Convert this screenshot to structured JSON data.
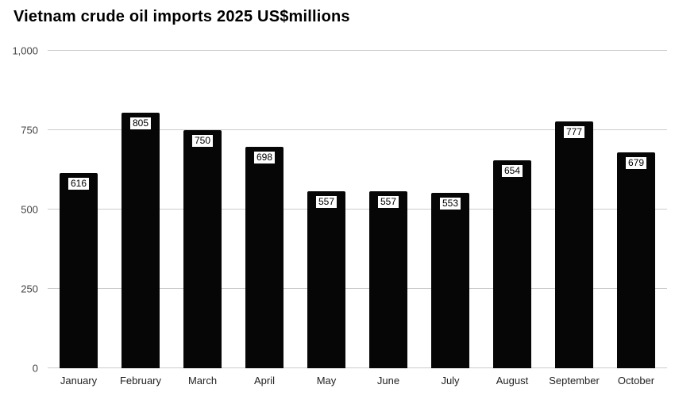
{
  "chart_data": {
    "type": "bar",
    "title": "Vietnam crude oil imports 2025 US$millions",
    "categories": [
      "January",
      "February",
      "March",
      "April",
      "May",
      "June",
      "July",
      "August",
      "September",
      "October"
    ],
    "values": [
      616,
      805,
      750,
      698,
      557,
      557,
      553,
      654,
      777,
      679
    ],
    "xlabel": "",
    "ylabel": "",
    "ylim": [
      0,
      1000
    ],
    "yticks": [
      0,
      250,
      500,
      750,
      1000
    ],
    "ytick_labels": [
      "0",
      "250",
      "500",
      "750",
      "1,000"
    ],
    "grid": true,
    "legend_position": "none",
    "bar_color": "#060606",
    "gridline_color": "#cccccc",
    "annotation_text_color": "#000000",
    "annotation_background": "#ffffff"
  }
}
